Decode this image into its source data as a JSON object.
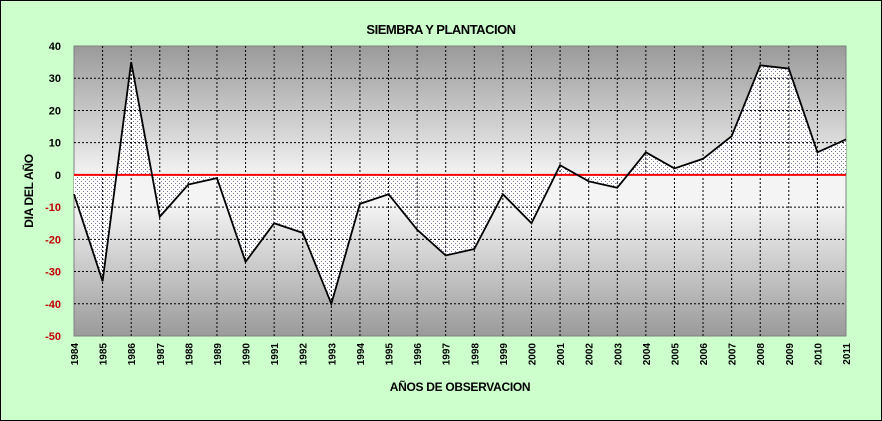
{
  "chart_data": {
    "type": "line",
    "title": "SIEMBRA Y PLANTACION",
    "xlabel": "AÑOS DE OBSERVACION",
    "ylabel": "DIA DEL AÑO",
    "ylim": [
      -50,
      40
    ],
    "yticks": [
      40,
      30,
      20,
      10,
      0,
      -10,
      -20,
      -30,
      -40,
      -50
    ],
    "grid": true,
    "categories": [
      "1984",
      "1985",
      "1986",
      "1987",
      "1988",
      "1989",
      "1990",
      "1991",
      "1992",
      "1993",
      "1994",
      "1995",
      "1996",
      "1997",
      "1998",
      "1999",
      "2000",
      "2001",
      "2002",
      "2003",
      "2004",
      "2005",
      "2006",
      "2007",
      "2008",
      "2009",
      "2010",
      "2011"
    ],
    "series": [
      {
        "values": [
          -6,
          -33,
          35,
          -13,
          -3,
          -1,
          -27,
          -15,
          -18,
          -40,
          -9,
          -6,
          -17,
          -25,
          -23,
          -6,
          -15,
          3,
          -2,
          -4,
          7,
          2,
          5,
          12,
          34,
          33,
          7,
          11
        ]
      }
    ],
    "colors": {
      "background": "#ccffcc",
      "plot_top": "#9e9e9e",
      "plot_mid": "#f2f2f2",
      "line": "#000000",
      "zero_line": "#ff0000",
      "negative_tick": "#c00000",
      "positive_tick": "#000000",
      "fill_dots": "#7a7aa8"
    }
  }
}
